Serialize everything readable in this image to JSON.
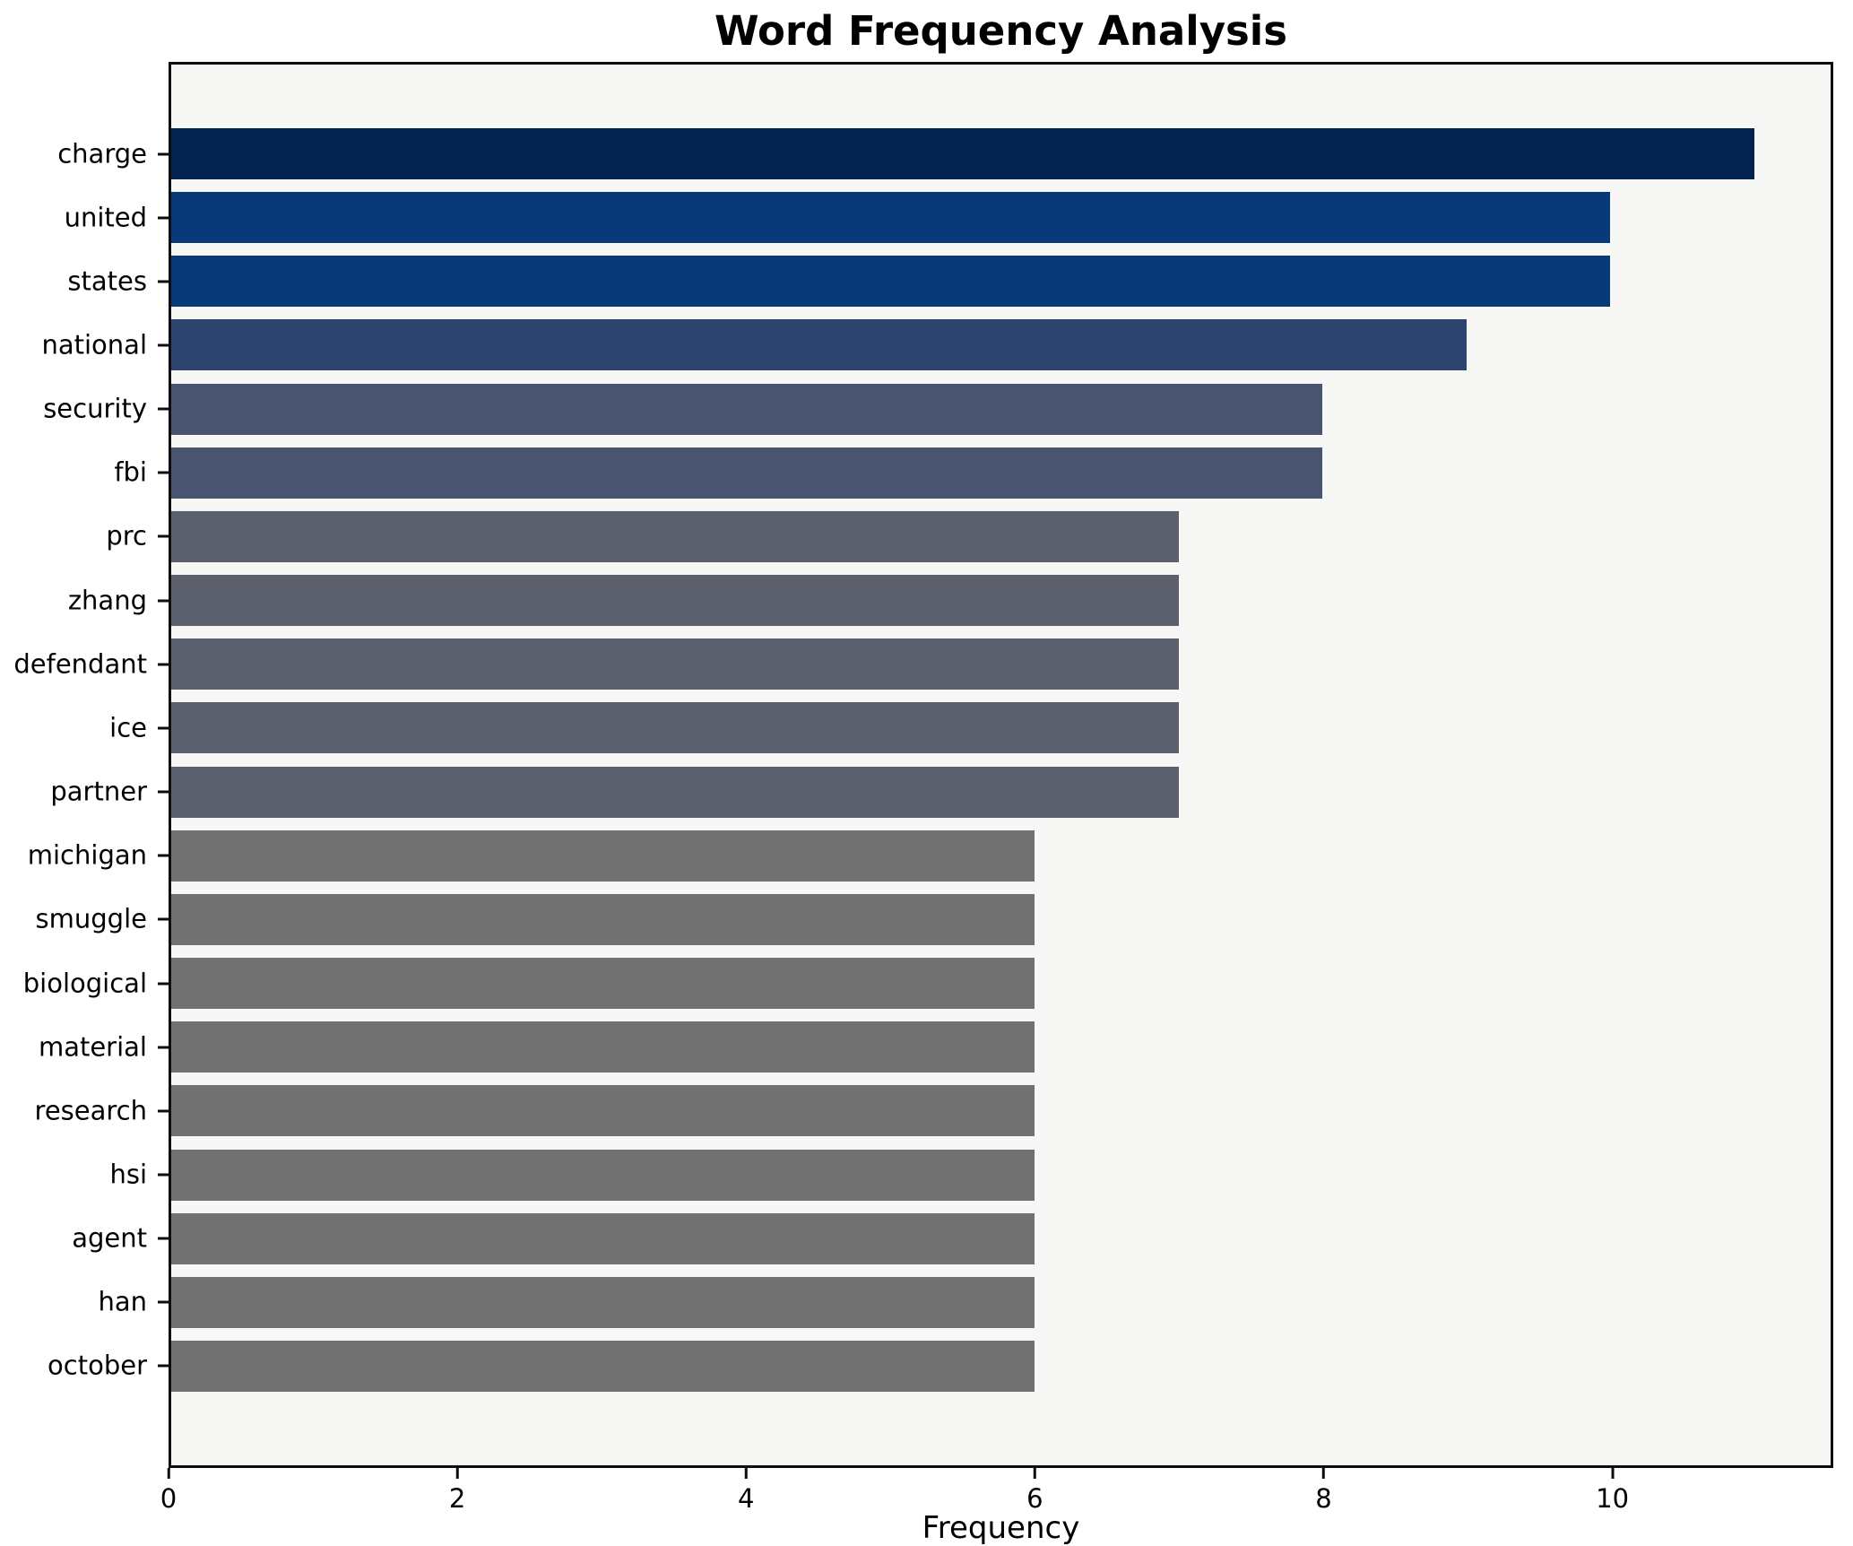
{
  "chart_data": {
    "type": "bar",
    "orientation": "horizontal",
    "title": "Word Frequency Analysis",
    "xlabel": "Frequency",
    "ylabel": "",
    "xlim": [
      0,
      11.53
    ],
    "xticks": [
      0,
      2,
      4,
      6,
      8,
      10
    ],
    "grid": false,
    "legend": "none",
    "plot_background": "#f7f7f6",
    "figure_background": "#ffffff",
    "spine_color": "#0d0d0d",
    "categories": [
      "charge",
      "united",
      "states",
      "national",
      "security",
      "fbi",
      "prc",
      "zhang",
      "defendant",
      "ice",
      "partner",
      "michigan",
      "smuggle",
      "biological",
      "material",
      "research",
      "hsi",
      "agent",
      "han",
      "october"
    ],
    "values": [
      11,
      10,
      10,
      9,
      8,
      8,
      7,
      7,
      7,
      7,
      7,
      6,
      6,
      6,
      6,
      6,
      6,
      6,
      6,
      6
    ],
    "bar_colors": [
      "#03234f",
      "#083a7a",
      "#083a7a",
      "#2e456f",
      "#495470",
      "#495470",
      "#5d616d",
      "#5d616d",
      "#5d616d",
      "#5d616d",
      "#5d616d",
      "#717172",
      "#717172",
      "#717172",
      "#717172",
      "#717172",
      "#717172",
      "#717172",
      "#717172",
      "#717172"
    ]
  }
}
